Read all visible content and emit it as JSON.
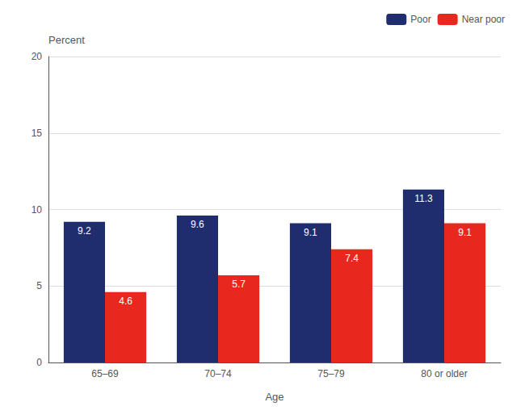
{
  "chart_data": {
    "type": "bar",
    "categories": [
      "65–69",
      "70–74",
      "75–79",
      "80 or older"
    ],
    "series": [
      {
        "name": "Poor",
        "color": "#1f2d6e",
        "values": [
          9.2,
          9.6,
          9.1,
          11.3
        ]
      },
      {
        "name": "Near poor",
        "color": "#e8281e",
        "values": [
          4.6,
          5.7,
          7.4,
          9.1
        ]
      }
    ],
    "ylabel": "Percent",
    "xlabel": "Age",
    "ylim": [
      0,
      20
    ],
    "yticks": [
      0,
      5,
      10,
      15,
      20
    ],
    "grid": true,
    "legend": "upper right",
    "data_labels": true
  }
}
